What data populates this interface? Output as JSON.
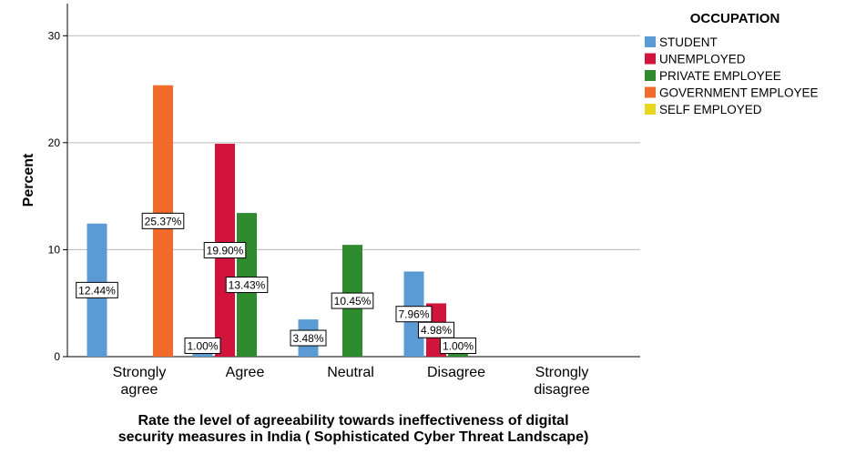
{
  "chart_data": {
    "type": "bar",
    "title": "",
    "xlabel": "Rate the level of agreeability towards ineffectiveness of digital security measures in India ( Sophisticated Cyber Threat Landscape)",
    "xlabel_lines": [
      "Rate the level of agreeability towards ineffectiveness of digital",
      "security measures in India ( Sophisticated Cyber Threat Landscape)"
    ],
    "ylabel": "Percent",
    "ylim": [
      0,
      33
    ],
    "yticks": [
      0,
      10,
      20,
      30
    ],
    "grid": true,
    "legend_title": "OCCUPATION",
    "legend_position": "top-right",
    "categories": [
      [
        "Strongly",
        "agree"
      ],
      [
        "Agree"
      ],
      [
        "Neutral"
      ],
      [
        "Disagree"
      ],
      [
        "Strongly",
        "disagree"
      ]
    ],
    "series": [
      {
        "name": "STUDENT",
        "color": "#5b9bd5",
        "values": [
          12.44,
          1.0,
          3.48,
          7.96,
          null
        ],
        "labels": [
          "12.44%",
          "1.00%",
          "3.48%",
          "7.96%",
          null
        ]
      },
      {
        "name": "UNEMPLOYED",
        "color": "#d2143c",
        "values": [
          null,
          19.9,
          null,
          4.98,
          null
        ],
        "labels": [
          null,
          "19.90%",
          null,
          "4.98%",
          null
        ]
      },
      {
        "name": "PRIVATE EMPLOYEE",
        "color": "#2e8b2e",
        "values": [
          null,
          13.43,
          10.45,
          1.0,
          null
        ],
        "labels": [
          null,
          "13.43%",
          "10.45%",
          "1.00%",
          null
        ]
      },
      {
        "name": "GOVERNMENT EMPLOYEE",
        "color": "#f26b2a",
        "values": [
          25.37,
          null,
          null,
          null,
          null
        ],
        "labels": [
          "25.37%",
          null,
          null,
          null,
          null
        ]
      },
      {
        "name": "SELF EMPLOYED",
        "color": "#e6d81e",
        "values": [
          null,
          null,
          null,
          null,
          null
        ],
        "labels": [
          null,
          null,
          null,
          null,
          null
        ]
      }
    ]
  }
}
